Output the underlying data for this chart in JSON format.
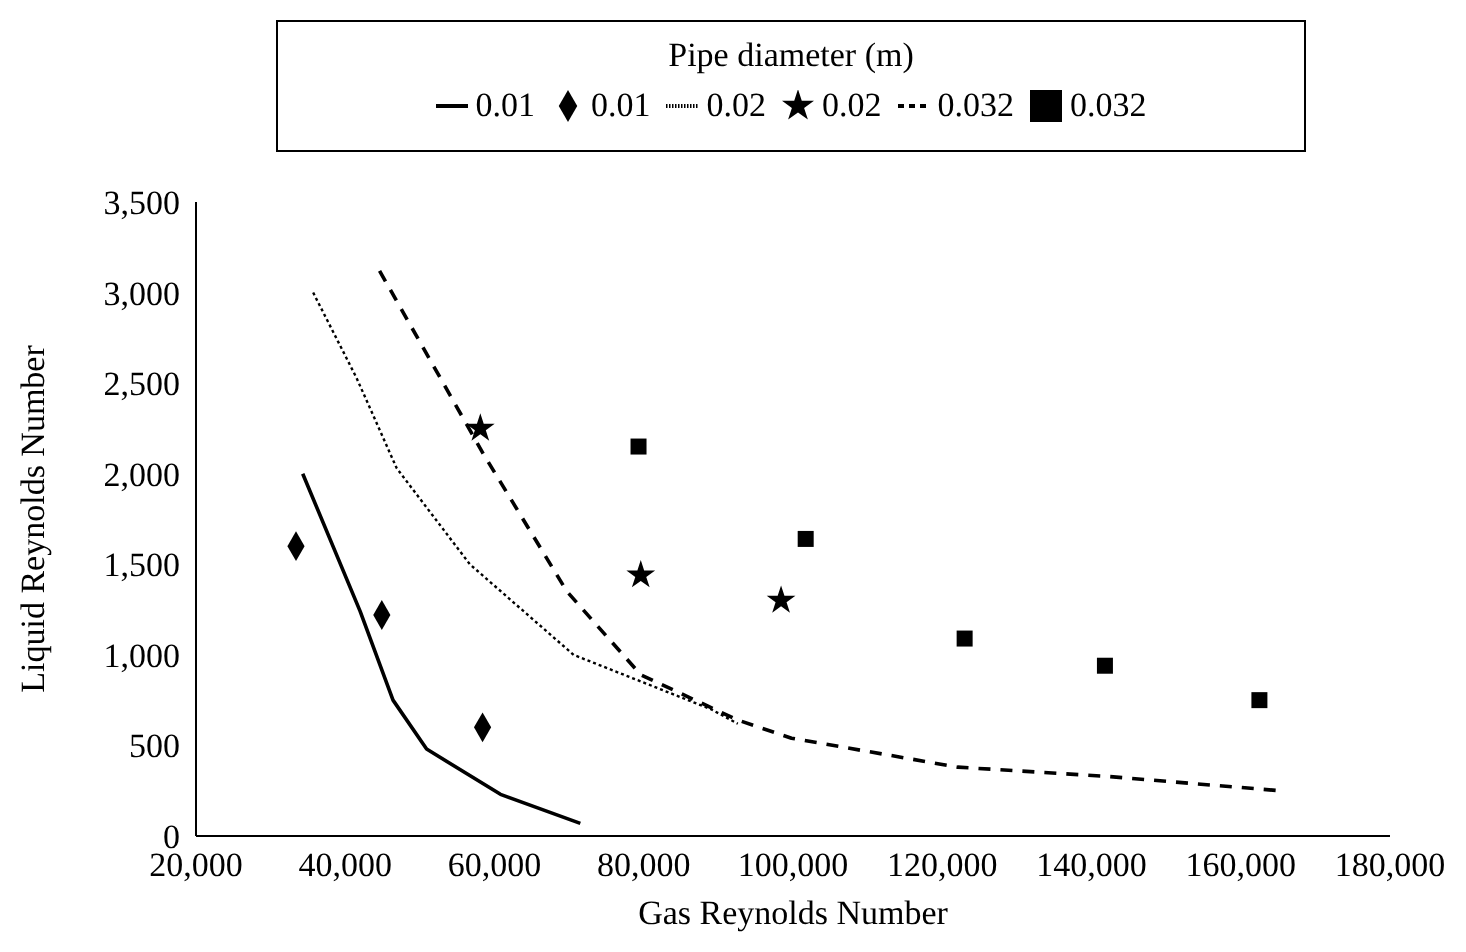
{
  "chart_data": {
    "type": "line",
    "xlabel": "Gas Reynolds Number",
    "ylabel": "Liquid Reynolds Number",
    "legend_title": "Pipe diameter (m)",
    "legend": "top",
    "grid": false,
    "xlim": [
      20000,
      180000
    ],
    "xticks": [
      {
        "value": 20000,
        "label": "20,000"
      },
      {
        "value": 40000,
        "label": "40,000"
      },
      {
        "value": 60000,
        "label": "60,000"
      },
      {
        "value": 80000,
        "label": "80,000"
      },
      {
        "value": 100000,
        "label": "100,000"
      },
      {
        "value": 120000,
        "label": "120,000"
      },
      {
        "value": 140000,
        "label": "140,000"
      },
      {
        "value": 160000,
        "label": "160,000"
      },
      {
        "value": 180000,
        "label": "180,000"
      }
    ],
    "ylim": [
      0,
      3500
    ],
    "yticks": [
      0,
      500,
      {
        "value": 1000,
        "label": "1,000"
      },
      {
        "value": 1500,
        "label": "1,500"
      },
      {
        "value": 2000,
        "label": "2,000"
      },
      {
        "value": 2500,
        "label": "2,500"
      },
      {
        "value": 3000,
        "label": "3,000"
      },
      {
        "value": 3500,
        "label": "3,500"
      }
    ],
    "series": [
      {
        "name": "0.01",
        "line_style": "solid",
        "marker": "none",
        "color": "#000000",
        "x": [
          34300,
          42000,
          46400,
          50900,
          60800,
          71500
        ],
        "values": [
          2000,
          1240,
          750,
          480,
          230,
          70
        ]
      },
      {
        "name": "0.01",
        "type": "scatter",
        "marker": "diamond",
        "color": "#000000",
        "x": [
          33400,
          44900,
          58400
        ],
        "values": [
          1600,
          1220,
          600
        ]
      },
      {
        "name": "0.02",
        "line_style": "dotted",
        "marker": "none",
        "color": "#000000",
        "x": [
          35700,
          41500,
          46900,
          56700,
          70600,
          89000,
          92600
        ],
        "values": [
          3000,
          2530,
          2030,
          1500,
          1000,
          700,
          620
        ]
      },
      {
        "name": "0.02",
        "type": "scatter",
        "marker": "star",
        "color": "#000000",
        "x": [
          58100,
          79600,
          98400
        ],
        "values": [
          2250,
          1440,
          1300
        ]
      },
      {
        "name": "0.032",
        "line_style": "dashed",
        "marker": "none",
        "color": "#000000",
        "x": [
          44600,
          58500,
          69700,
          79600,
          92600,
          99800,
          122100,
          141800,
          165200
        ],
        "values": [
          3120,
          2110,
          1350,
          890,
          640,
          540,
          380,
          330,
          250
        ]
      },
      {
        "name": "0.032",
        "type": "scatter",
        "marker": "square",
        "color": "#000000",
        "x": [
          79300,
          101700,
          123000,
          141800,
          162500
        ],
        "values": [
          2150,
          1640,
          1090,
          940,
          750
        ]
      }
    ]
  }
}
